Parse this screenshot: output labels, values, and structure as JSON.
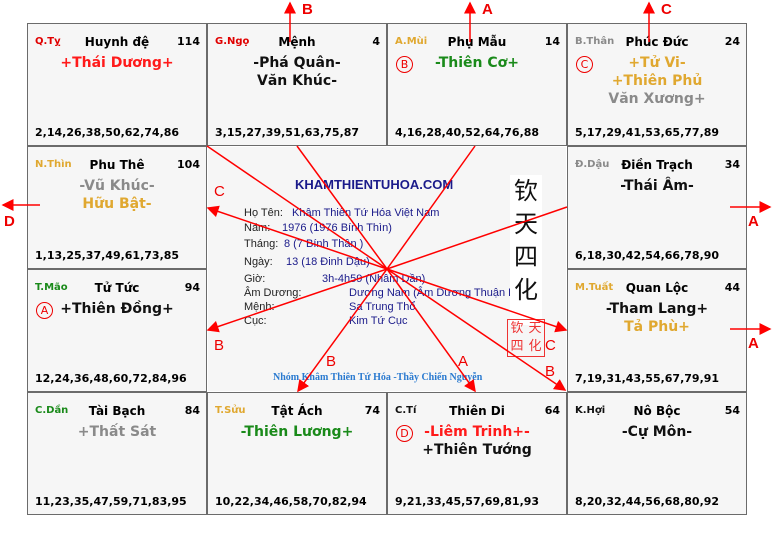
{
  "palaces": [
    {
      "can": "Q.Tỵ",
      "can_color": "#e00000",
      "name": "Huynh đệ",
      "age": "114",
      "stars": [
        {
          "t": "+Thái Dương+",
          "c": "#ff1a1a"
        }
      ],
      "nums": "2,14,26,38,50,62,74,86"
    },
    {
      "can": "G.Ngọ",
      "can_color": "#e00000",
      "name": "Mệnh",
      "age": "4",
      "stars": [
        {
          "t": "-Phá Quân-",
          "c": "#111"
        },
        {
          "t": "Văn Khúc-",
          "c": "#111"
        }
      ],
      "nums": "3,15,27,39,51,63,75,87"
    },
    {
      "can": "A.Mùi",
      "can_color": "#e0a830",
      "name": "Phụ Mẫu",
      "age": "14",
      "badge": "B",
      "stars": [
        {
          "t": "-Thiên Cơ+",
          "c": "#1a8a1a"
        }
      ],
      "nums": "4,16,28,40,52,64,76,88"
    },
    {
      "can": "B.Thân",
      "can_color": "#8a8a8a",
      "name": "Phúc Đức",
      "age": "24",
      "badge": "C",
      "stars": [
        {
          "t": "+Tử Vi-",
          "c": "#e0a830"
        },
        {
          "t": "+Thiên Phủ",
          "c": "#e0a830"
        },
        {
          "t": "Văn Xương+",
          "c": "#8a8a8a"
        }
      ],
      "nums": "5,17,29,41,53,65,77,89"
    },
    {
      "can": "N.Thìn",
      "can_color": "#e0a830",
      "name": "Phu Thê",
      "age": "104",
      "stars": [
        {
          "t": "-Vũ Khúc-",
          "c": "#8a8a8a"
        },
        {
          "t": "Hữu Bật-",
          "c": "#e0a830"
        }
      ],
      "nums": "1,13,25,37,49,61,73,85"
    },
    {
      "can": "Đ.Dậu",
      "can_color": "#8a8a8a",
      "name": "Điền Trạch",
      "age": "34",
      "stars": [
        {
          "t": "-Thái Âm-",
          "c": "#111"
        }
      ],
      "nums": "6,18,30,42,54,66,78,90"
    },
    {
      "can": "T.Mão",
      "can_color": "#1a8a1a",
      "name": "Tử Tức",
      "age": "94",
      "badge": "A",
      "stars": [
        {
          "t": "+Thiên Đồng+",
          "c": "#111"
        }
      ],
      "nums": "12,24,36,48,60,72,84,96"
    },
    {
      "can": "M.Tuất",
      "can_color": "#e0a830",
      "name": "Quan Lộc",
      "age": "44",
      "stars": [
        {
          "t": "-Tham Lang+",
          "c": "#111"
        },
        {
          "t": "Tả Phù+",
          "c": "#e0a830"
        }
      ],
      "nums": "7,19,31,43,55,67,79,91"
    },
    {
      "can": "C.Dần",
      "can_color": "#1a8a1a",
      "name": "Tài Bạch",
      "age": "84",
      "stars": [
        {
          "t": "+Thất Sát",
          "c": "#8a8a8a"
        }
      ],
      "nums": "11,23,35,47,59,71,83,95"
    },
    {
      "can": "T.Sửu",
      "can_color": "#e0a830",
      "name": "Tật Ách",
      "age": "74",
      "stars": [
        {
          "t": "-Thiên Lương+",
          "c": "#1a8a1a"
        }
      ],
      "nums": "10,22,34,46,58,70,82,94"
    },
    {
      "can": "C.Tí",
      "can_color": "#111",
      "name": "Thiên Di",
      "age": "64",
      "badge": "D",
      "stars": [
        {
          "t": "-Liêm Trinh+-",
          "c": "#ff1a1a"
        },
        {
          "t": "+Thiên Tướng",
          "c": "#111"
        }
      ],
      "nums": "9,21,33,45,57,69,81,93"
    },
    {
      "can": "K.Hợi",
      "can_color": "#111",
      "name": "Nô Bộc",
      "age": "54",
      "stars": [
        {
          "t": "-Cự Môn-",
          "c": "#111"
        }
      ],
      "nums": "8,20,32,44,56,68,80,92"
    }
  ],
  "center": {
    "site": "KHAMTHIENTUHOA.COM",
    "rows": [
      {
        "label": "Họ Tên:",
        "value": "Khâm Thiên Tứ Hóa Việt Nam"
      },
      {
        "label": "Năm:",
        "value": "1976  (1976 Bính  Thìn)"
      },
      {
        "label": "Tháng:",
        "value": "8  (7 Bính Thân )"
      },
      {
        "label": "Ngày:",
        "value": "13  (18 Đinh Dậu)"
      },
      {
        "label": "Giờ:",
        "value": "3h-4h59 (Nhâm Dần)"
      },
      {
        "label": "Âm Dương:",
        "value": "Dương Nam (Âm Dương Thuận Lý)"
      },
      {
        "label": "Mệnh:",
        "value": "Sa Trung Thổ"
      },
      {
        "label": "Cục:",
        "value": "Kim Tứ Cục"
      }
    ],
    "chinese": [
      "钦",
      "天",
      "四",
      "化"
    ],
    "seal": "钦天四化",
    "footer": "Nhóm Khâm Thiên Tứ Hóa -Thầy Chiến Nguyễn"
  },
  "arrow_labels": {
    "top_menh": "B",
    "top_phumau": "A",
    "top_phucduc": "C",
    "left_phuthe": "D",
    "right_dientrach": "A",
    "right_quanloc": "A",
    "in_phuthe": "C",
    "in_tutuc": "B",
    "in_quanloc": "C",
    "in_nobroc": "B",
    "in_thiendi": "A",
    "in_tatach": "B"
  },
  "colors": {
    "arrow": "#ff0000",
    "cell_bg": "#f6f6f6",
    "border": "#6b6b6b"
  }
}
